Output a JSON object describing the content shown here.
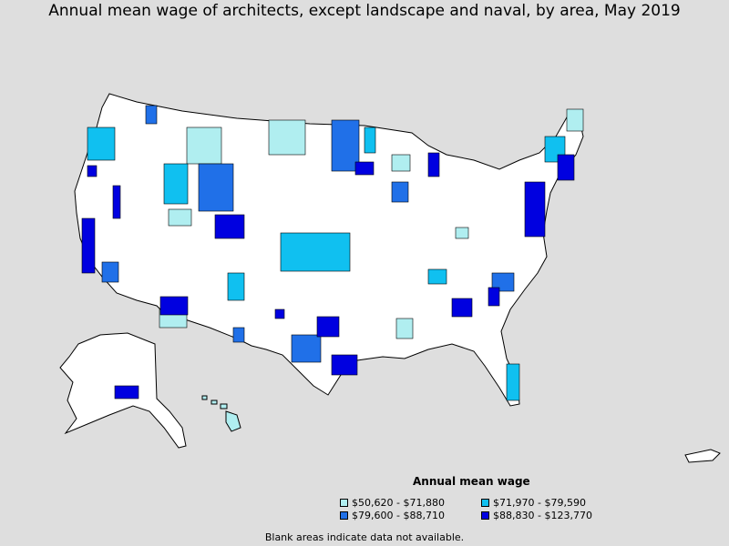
{
  "title": "Annual mean wage of architects, except landscape and naval, by area, May 2019",
  "legend": {
    "title": "Annual mean wage",
    "items": [
      {
        "label": "$50,620 - $71,880",
        "color": "#b0eef0"
      },
      {
        "label": "$71,970 - $79,590",
        "color": "#10c0f0"
      },
      {
        "label": "$79,600 - $88,710",
        "color": "#2070e8"
      },
      {
        "label": "$88,830 - $123,770",
        "color": "#0000e0"
      }
    ]
  },
  "footnote": "Blank areas indicate data not available.",
  "colors": {
    "background": "#dedede",
    "land": "#ffffff",
    "border": "#000000"
  }
}
